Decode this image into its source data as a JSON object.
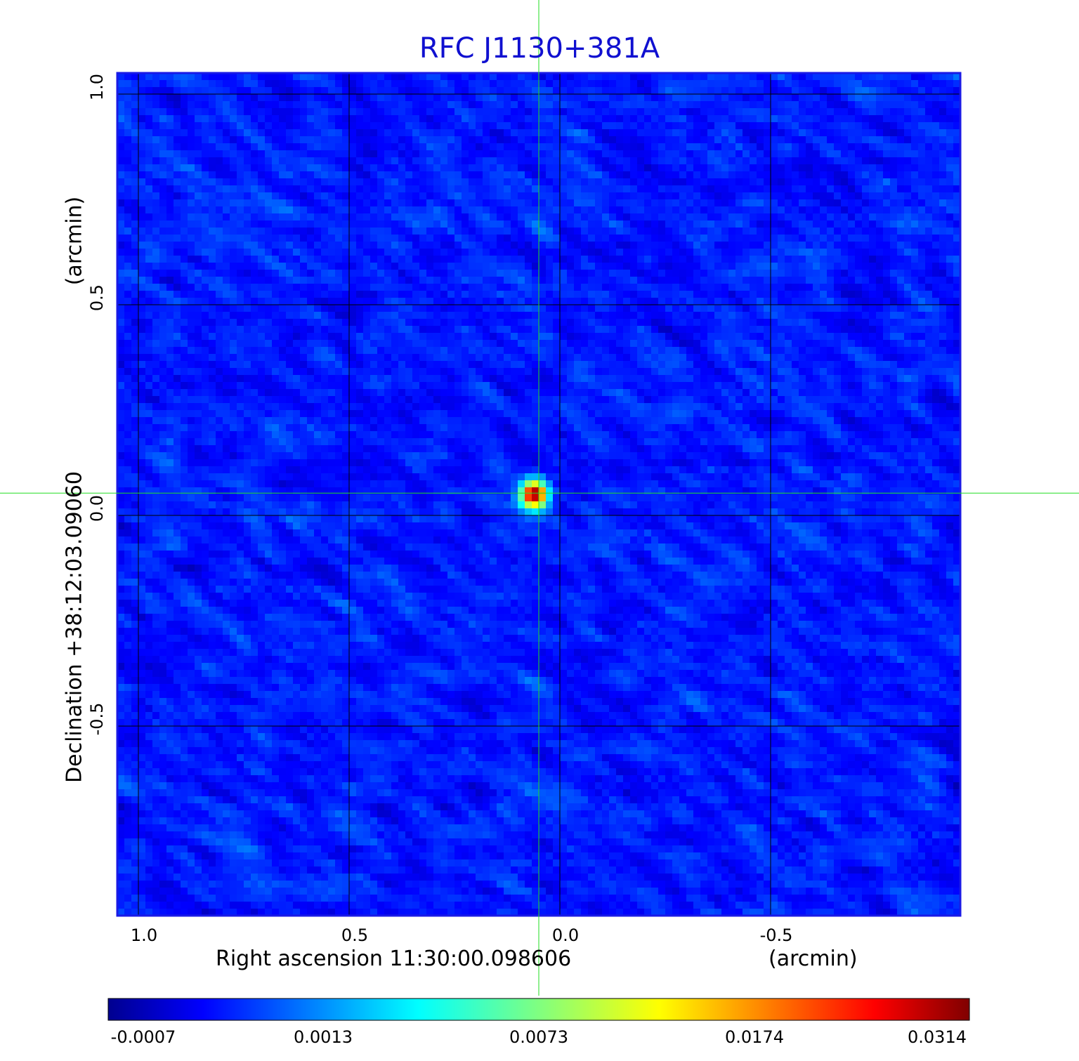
{
  "chart_data": {
    "type": "heatmap",
    "title": "RFC J1130+381A",
    "xlabel": "Right ascension  11:30:00.098606",
    "xunit": "(arcmin)",
    "ylabel": "Declination  +38:12:03.09060",
    "yunit": "(arcmin)",
    "xlim": [
      1.05,
      -0.95
    ],
    "ylim": [
      -0.95,
      1.05
    ],
    "x_ticks": [
      {
        "value": 1.0,
        "label": "1.0"
      },
      {
        "value": 0.5,
        "label": "0.5"
      },
      {
        "value": 0.0,
        "label": "0.0"
      },
      {
        "value": -0.5,
        "label": "-0.5"
      }
    ],
    "y_ticks": [
      {
        "value": 1.0,
        "label": "1.0"
      },
      {
        "value": 0.5,
        "label": "0.5"
      },
      {
        "value": 0.0,
        "label": "0.0"
      },
      {
        "value": -0.5,
        "label": "-0.5"
      }
    ],
    "grid": true,
    "colormap": "jet",
    "colorbar_ticks": [
      "-0.0007",
      "0.0013",
      "0.0073",
      "0.0174",
      "0.0314"
    ],
    "colorbar_range": [
      -0.0007,
      0.0314
    ],
    "source": {
      "x": 0.06,
      "y": 0.05,
      "peak": 0.0314
    },
    "crosshair": {
      "x": 0.05,
      "y": 0.053
    },
    "colors": {
      "title": "#1010d0",
      "frame": "#1a1ae6",
      "grid": "#000000",
      "crosshair": "#22dd22"
    }
  }
}
